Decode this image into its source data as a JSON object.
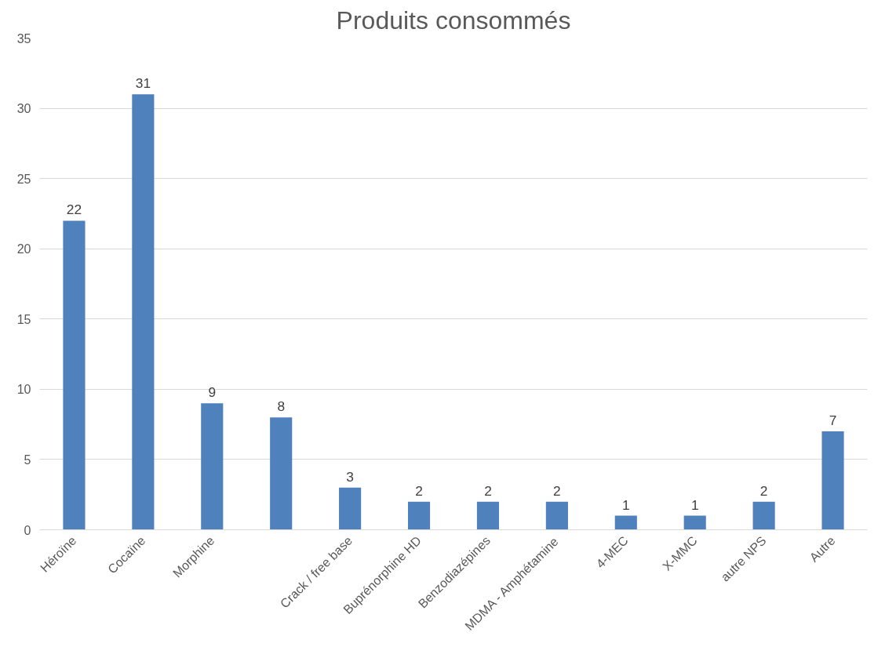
{
  "chart_data": {
    "type": "bar",
    "title": "Produits consommés",
    "categories": [
      "Héroïne",
      "Cocaïne",
      "Morphine",
      null,
      "Crack / free base",
      "Buprénorphine HD",
      "Benzodiazépines",
      "MDMA - Amphétamine",
      "4-MEC",
      "X-MMC",
      "autre NPS",
      "Autre"
    ],
    "values": [
      22,
      31,
      9,
      8,
      3,
      2,
      2,
      2,
      1,
      1,
      2,
      7
    ],
    "color": "#4f81bd",
    "ylim": [
      0,
      35
    ],
    "yticks": [
      0,
      5,
      10,
      15,
      20,
      25,
      30,
      35
    ],
    "grid": "y",
    "data_labels": true
  }
}
